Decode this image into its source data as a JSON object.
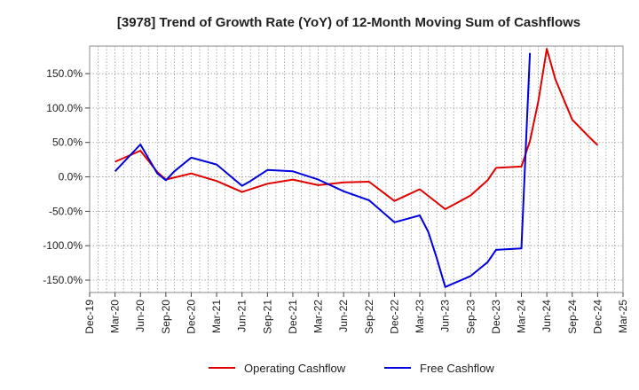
{
  "chart_data": {
    "type": "line",
    "title": "[3978]  Trend of Growth Rate (YoY) of 12-Month Moving Sum of Cashflows",
    "xlabel": "",
    "ylabel": "",
    "ylim": [
      -168,
      190
    ],
    "yticks": [
      "150.0%",
      "100.0%",
      "50.0%",
      "0.0%",
      "-50.0%",
      "-100.0%",
      "-150.0%"
    ],
    "ytick_values": [
      150,
      100,
      50,
      0,
      -50,
      -100,
      -150
    ],
    "x_labels": [
      "Dec-19",
      "Mar-20",
      "Jun-20",
      "Sep-20",
      "Dec-20",
      "Mar-21",
      "Jun-21",
      "Sep-21",
      "Dec-21",
      "Mar-22",
      "Jun-22",
      "Sep-22",
      "Dec-22",
      "Mar-23",
      "Jun-23",
      "Sep-23",
      "Dec-23",
      "Mar-24",
      "Jun-24",
      "Sep-24",
      "Dec-24",
      "Mar-25"
    ],
    "grid": true,
    "legend_position": "bottom",
    "series": [
      {
        "name": "Operating Cashflow",
        "color": "#e00000",
        "points": [
          {
            "x": "Mar-20",
            "y": 22
          },
          {
            "x": "Jun-20",
            "y": 38
          },
          {
            "x": "Aug-20",
            "y": 7
          },
          {
            "x": "Sep-20",
            "y": -4
          },
          {
            "x": "Dec-20",
            "y": 5
          },
          {
            "x": "Mar-21",
            "y": -6
          },
          {
            "x": "Jun-21",
            "y": -22
          },
          {
            "x": "Sep-21",
            "y": -10
          },
          {
            "x": "Dec-21",
            "y": -4
          },
          {
            "x": "Mar-22",
            "y": -12
          },
          {
            "x": "Jun-22",
            "y": -8
          },
          {
            "x": "Sep-22",
            "y": -7
          },
          {
            "x": "Dec-22",
            "y": -35
          },
          {
            "x": "Mar-23",
            "y": -18
          },
          {
            "x": "Jun-23",
            "y": -47
          },
          {
            "x": "Sep-23",
            "y": -27
          },
          {
            "x": "Nov-23",
            "y": -5
          },
          {
            "x": "Dec-23",
            "y": 13
          },
          {
            "x": "Mar-24",
            "y": 15
          },
          {
            "x": "Apr-24",
            "y": 52
          },
          {
            "x": "May-24",
            "y": 110
          },
          {
            "x": "Jun-24",
            "y": 186
          },
          {
            "x": "Jul-24",
            "y": 142
          },
          {
            "x": "Sep-24",
            "y": 83
          },
          {
            "x": "Nov-24",
            "y": 58
          },
          {
            "x": "Dec-24",
            "y": 46
          }
        ]
      },
      {
        "name": "Free Cashflow",
        "color": "#0000dd",
        "points": [
          {
            "x": "Mar-20",
            "y": 8
          },
          {
            "x": "Jun-20",
            "y": 47
          },
          {
            "x": "Aug-20",
            "y": 5
          },
          {
            "x": "Sep-20",
            "y": -5
          },
          {
            "x": "Oct-20",
            "y": 8
          },
          {
            "x": "Dec-20",
            "y": 28
          },
          {
            "x": "Mar-21",
            "y": 18
          },
          {
            "x": "Jun-21",
            "y": -13
          },
          {
            "x": "Jul-21",
            "y": -6
          },
          {
            "x": "Sep-21",
            "y": 10
          },
          {
            "x": "Dec-21",
            "y": 8
          },
          {
            "x": "Mar-22",
            "y": -4
          },
          {
            "x": "Jun-22",
            "y": -21
          },
          {
            "x": "Sep-22",
            "y": -34
          },
          {
            "x": "Dec-22",
            "y": -66
          },
          {
            "x": "Mar-23",
            "y": -56
          },
          {
            "x": "Apr-23",
            "y": -80
          },
          {
            "x": "May-23",
            "y": -118
          },
          {
            "x": "Jun-23",
            "y": -160
          },
          {
            "x": "Sep-23",
            "y": -144
          },
          {
            "x": "Oct-23",
            "y": -134
          },
          {
            "x": "Nov-23",
            "y": -124
          },
          {
            "x": "Dec-23",
            "y": -106
          },
          {
            "x": "Mar-24",
            "y": -104
          },
          {
            "x": "Apr-24",
            "y": 180
          }
        ]
      }
    ]
  }
}
